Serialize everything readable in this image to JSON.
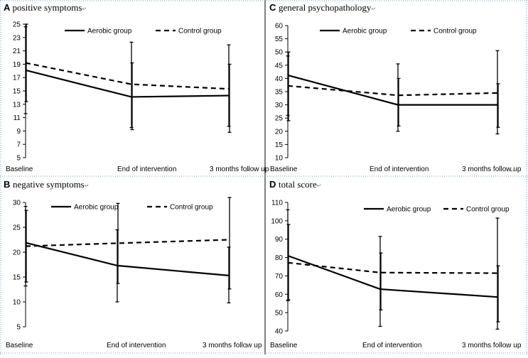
{
  "chart_data": [
    {
      "type": "line",
      "panel_letter": "A",
      "title": "positive symptoms",
      "title_mark": "↵",
      "categories": [
        "Baseline",
        "End of intervention",
        "3 months follow up"
      ],
      "category_mark": "↵",
      "ylim": [
        5,
        25
      ],
      "yticks": [
        5,
        7,
        9,
        11,
        13,
        15,
        17,
        19,
        21,
        23,
        25
      ],
      "series": [
        {
          "name": "Aerobic group",
          "style": "solid",
          "values": [
            18.1,
            14.1,
            14.3
          ],
          "err_low": [
            11.6,
            9.5,
            9.7
          ],
          "err_high": [
            24.6,
            22.3,
            21.9
          ]
        },
        {
          "name": "Control group",
          "style": "dashed",
          "values": [
            19.2,
            16.0,
            15.3
          ],
          "err_low": [
            13.4,
            9.2,
            8.8
          ],
          "err_high": [
            25.0,
            19.2,
            19.0
          ]
        }
      ]
    },
    {
      "type": "line",
      "panel_letter": "B",
      "title": "negative symptoms",
      "title_mark": "↵",
      "categories": [
        "Baseline",
        "End of intervention",
        "3 months follow up"
      ],
      "category_mark": "↵",
      "ylim": [
        5,
        30
      ],
      "yticks": [
        5,
        10,
        15,
        20,
        25,
        30
      ],
      "series": [
        {
          "name": "Aerobic group",
          "style": "solid",
          "values": [
            21.9,
            17.3,
            15.3
          ],
          "err_low": [
            13.2,
            10.0,
            9.8
          ],
          "err_high": [
            29.2,
            24.5,
            21.0
          ]
        },
        {
          "name": "Control group",
          "style": "dashed",
          "values": [
            21.2,
            21.8,
            22.5
          ],
          "err_low": [
            14.0,
            13.7,
            12.6
          ],
          "err_high": [
            28.4,
            29.8,
            31.0
          ]
        }
      ]
    },
    {
      "type": "line",
      "panel_letter": "C",
      "title": "general psychopathology",
      "title_mark": "↵",
      "categories": [
        "Baseline",
        "End of intervention",
        "3 months follow up"
      ],
      "category_mark": "↵",
      "ylim": [
        10,
        60
      ],
      "yticks": [
        10,
        15,
        20,
        25,
        30,
        35,
        40,
        45,
        50,
        55,
        60
      ],
      "series": [
        {
          "name": "Aerobic group",
          "style": "solid",
          "values": [
            41.2,
            30.0,
            30.0
          ],
          "err_low": [
            26.0,
            20.0,
            19.0
          ],
          "err_high": [
            48.5,
            45.5,
            50.5
          ]
        },
        {
          "name": "Control group",
          "style": "dashed",
          "values": [
            37.2,
            33.6,
            34.5
          ],
          "err_low": [
            24.0,
            22.0,
            21.5
          ],
          "err_high": [
            50.0,
            40.0,
            38.0
          ]
        }
      ]
    },
    {
      "type": "line",
      "panel_letter": "D",
      "title": "total score",
      "title_mark": "↵",
      "categories": [
        "Baseline",
        "End of intervention",
        "3 months follow up"
      ],
      "category_mark": "↵",
      "ylim": [
        40,
        110
      ],
      "yticks": [
        40,
        50,
        60,
        70,
        80,
        90,
        100,
        110
      ],
      "series": [
        {
          "name": "Aerobic group",
          "style": "solid",
          "values": [
            81.0,
            62.8,
            58.5
          ],
          "err_low": [
            56.5,
            42.5,
            41.0
          ],
          "err_high": [
            106.0,
            91.5,
            101.5
          ]
        },
        {
          "name": "Control group",
          "style": "dashed",
          "values": [
            77.2,
            71.8,
            71.5
          ],
          "err_low": [
            57.0,
            51.5,
            45.0
          ],
          "err_high": [
            98.0,
            82.5,
            75.5
          ]
        }
      ]
    }
  ]
}
